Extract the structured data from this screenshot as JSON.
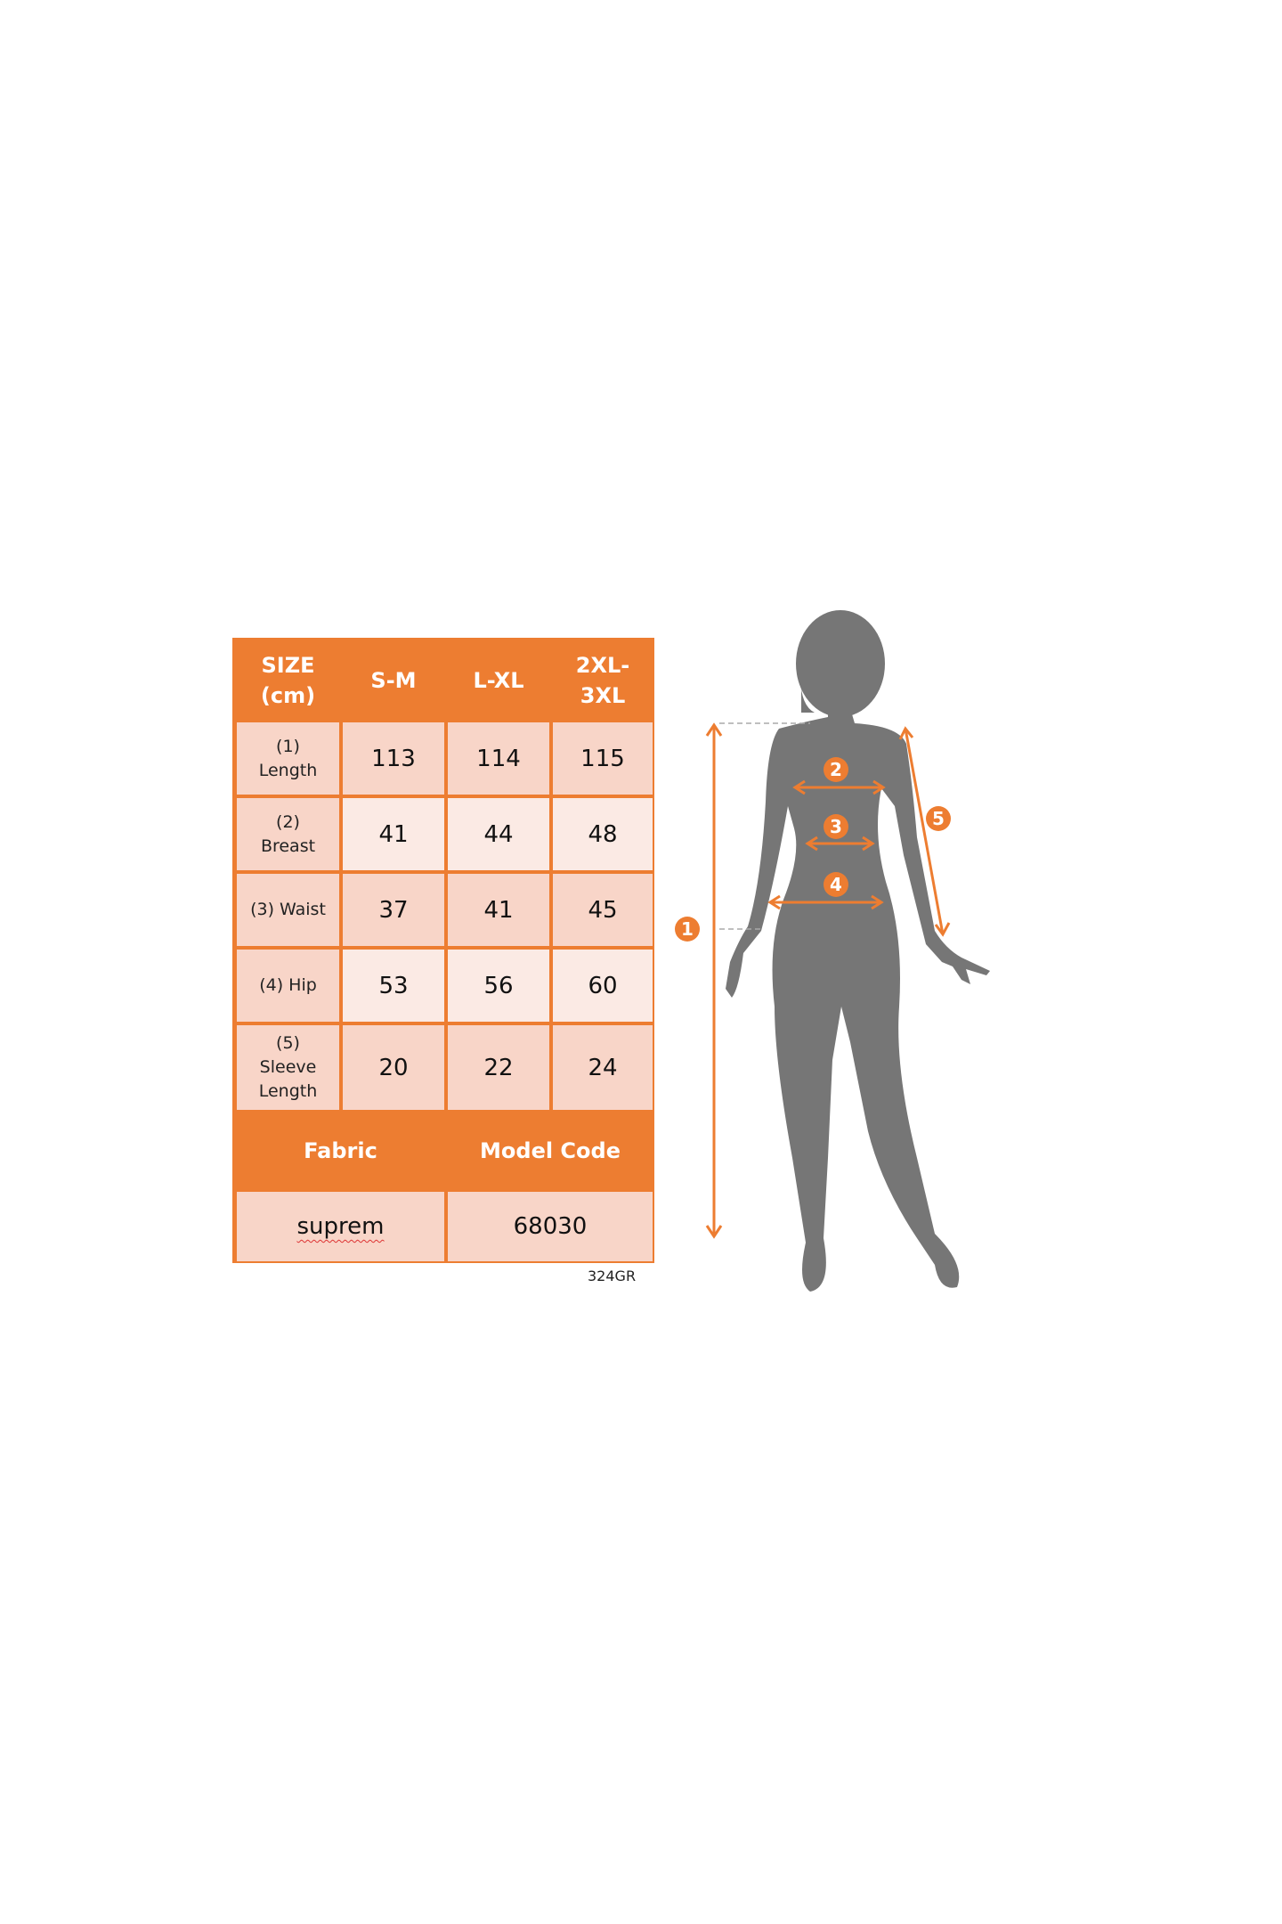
{
  "colors": {
    "accent": "#ED7D31",
    "silhouette": "#767676",
    "cell_dark": "#F8D5C8",
    "cell_light": "#FBEAE4"
  },
  "table": {
    "header": [
      "SIZE (cm)",
      "S-M",
      "L-XL",
      "2XL-3XL"
    ],
    "rows": [
      {
        "label": "(1) Length",
        "values": [
          "113",
          "114",
          "115"
        ]
      },
      {
        "label": "(2) Breast",
        "values": [
          "41",
          "44",
          "48"
        ]
      },
      {
        "label": "(3) Waist",
        "values": [
          "37",
          "41",
          "45"
        ]
      },
      {
        "label": "(4) Hip",
        "values": [
          "53",
          "56",
          "60"
        ]
      },
      {
        "label": "(5) Sleeve Length",
        "values": [
          "20",
          "22",
          "24"
        ]
      }
    ],
    "footer_headers": [
      "Fabric",
      "Model Code"
    ],
    "footer_values": [
      "suprem",
      "68030"
    ]
  },
  "code_note": "324GR",
  "figure": {
    "markers": [
      "1",
      "2",
      "3",
      "4",
      "5"
    ]
  }
}
